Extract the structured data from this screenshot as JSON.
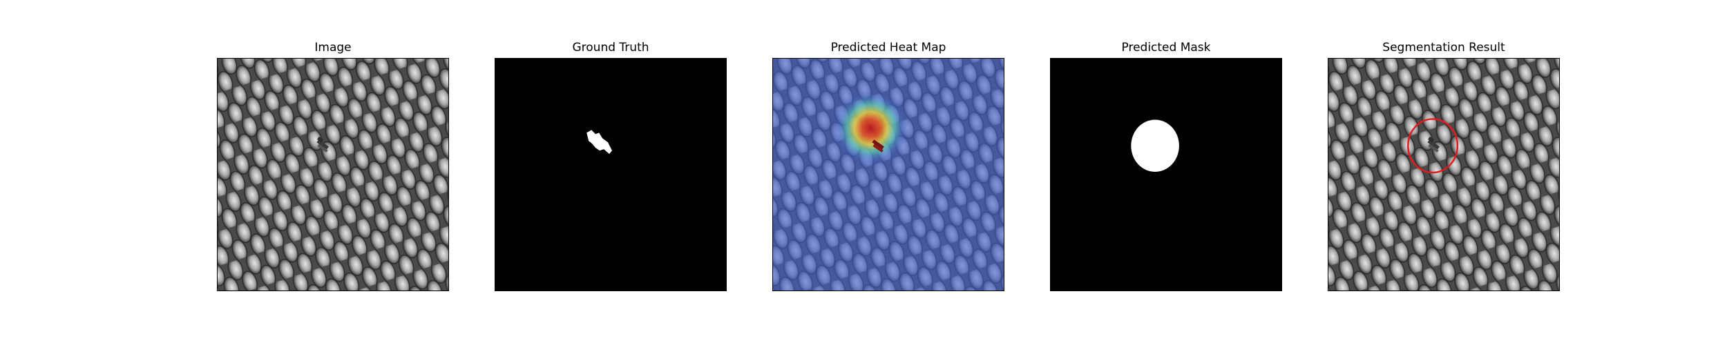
{
  "figure": {
    "panels": [
      {
        "title": "Image",
        "icon": "textured-surface-image"
      },
      {
        "title": "Ground Truth",
        "icon": "ground-truth-mask-image"
      },
      {
        "title": "Predicted Heat Map",
        "icon": "heatmap-overlay-image"
      },
      {
        "title": "Predicted Mask",
        "icon": "predicted-mask-image"
      },
      {
        "title": "Segmentation Result",
        "icon": "segmentation-overlay-image"
      }
    ],
    "colors": {
      "background": "#ffffff",
      "mask_background": "#000000",
      "mask_foreground": "#ffffff",
      "segmentation_outline": "#e8191a"
    }
  }
}
